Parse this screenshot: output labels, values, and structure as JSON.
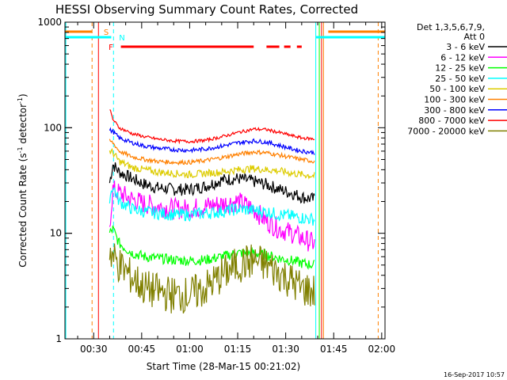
{
  "chart_data": {
    "type": "line",
    "title": "HESSI Observing Summary Count Rates, Corrected",
    "xlabel": "Start Time (28-Mar-15 00:21:02)",
    "ylabel": "Corrected Count Rate (s⁻¹ detector⁻¹)",
    "ylabel_parts": [
      "Corrected Count Rate (s",
      "-1",
      " detector",
      "-1",
      ")"
    ],
    "yscale": "log",
    "ylim": [
      1,
      1000
    ],
    "yticks": [
      {
        "v": 1,
        "label": "1"
      },
      {
        "v": 10,
        "label": "10"
      },
      {
        "v": 100,
        "label": "100"
      },
      {
        "v": 1000,
        "label": "1000"
      }
    ],
    "xlim_minutes": [
      21.03,
      121.03
    ],
    "xticks": [
      {
        "m": 30,
        "label": "00:30"
      },
      {
        "m": 45,
        "label": "00:45"
      },
      {
        "m": 60,
        "label": "01:00"
      },
      {
        "m": 75,
        "label": "01:15"
      },
      {
        "m": 90,
        "label": "01:30"
      },
      {
        "m": 105,
        "label": "01:45"
      },
      {
        "m": 120,
        "label": "02:00"
      }
    ],
    "legend": {
      "header_lines": [
        "Det 1,3,5,6,7,9,",
        "Att 0"
      ],
      "position": "right"
    },
    "series": [
      {
        "name": "3 - 6 keV",
        "color": "#000000",
        "x": [
          35,
          36,
          38,
          42,
          46,
          50,
          55,
          60,
          65,
          70,
          75,
          80,
          84,
          88,
          92,
          95,
          99
        ],
        "y": [
          30,
          45,
          38,
          33,
          29,
          27,
          26,
          26,
          28,
          32,
          33,
          31,
          29,
          26,
          24,
          22,
          21
        ]
      },
      {
        "name": "6 - 12 keV",
        "color": "#ff00ff",
        "x": [
          35,
          36,
          38,
          42,
          46,
          50,
          55,
          60,
          65,
          70,
          75,
          80,
          84,
          88,
          92,
          95,
          99
        ],
        "y": [
          12,
          26,
          24,
          21,
          19,
          18,
          17,
          17,
          18,
          19,
          20,
          17,
          13,
          11,
          10,
          9,
          8
        ]
      },
      {
        "name": "12 - 25 keV",
        "color": "#00ff00",
        "x": [
          35,
          36,
          38,
          42,
          46,
          50,
          55,
          60,
          65,
          70,
          75,
          80,
          84,
          88,
          92,
          95,
          99
        ],
        "y": [
          10,
          11,
          8,
          6.5,
          6,
          5.8,
          5.6,
          5.5,
          5.6,
          6,
          6.5,
          6.5,
          6.2,
          5.8,
          5.5,
          5.2,
          5
        ]
      },
      {
        "name": "25 - 50 keV",
        "color": "#00ffff",
        "x": [
          35,
          36,
          38,
          42,
          46,
          50,
          55,
          60,
          65,
          70,
          75,
          80,
          84,
          88,
          92,
          95,
          99
        ],
        "y": [
          22,
          28,
          20,
          17,
          16,
          15.5,
          15,
          15,
          15.5,
          16,
          17,
          16.5,
          16,
          15,
          14.5,
          14,
          13.5
        ]
      },
      {
        "name": "50 - 100 keV",
        "color": "#ddcc00",
        "x": [
          35,
          36,
          38,
          42,
          46,
          50,
          55,
          60,
          65,
          70,
          75,
          80,
          84,
          88,
          92,
          95,
          99
        ],
        "y": [
          60,
          58,
          48,
          42,
          40,
          38,
          37,
          36,
          37,
          38,
          40,
          41,
          40,
          39,
          37,
          36,
          35
        ]
      },
      {
        "name": "100 - 300 keV",
        "color": "#ff8000",
        "x": [
          35,
          36,
          38,
          42,
          46,
          50,
          55,
          60,
          65,
          70,
          75,
          80,
          84,
          88,
          92,
          95,
          99
        ],
        "y": [
          75,
          72,
          60,
          53,
          50,
          48,
          47,
          47,
          49,
          52,
          56,
          59,
          58,
          55,
          52,
          50,
          48
        ]
      },
      {
        "name": "300 - 800 keV",
        "color": "#0000ff",
        "x": [
          35,
          36,
          38,
          42,
          46,
          50,
          55,
          60,
          65,
          70,
          75,
          80,
          84,
          88,
          92,
          95,
          99
        ],
        "y": [
          95,
          92,
          80,
          72,
          67,
          64,
          62,
          61,
          63,
          67,
          72,
          75,
          73,
          68,
          63,
          60,
          58
        ]
      },
      {
        "name": "800 - 7000 keV",
        "color": "#ff0000",
        "x": [
          35,
          36,
          38,
          42,
          46,
          50,
          55,
          60,
          65,
          70,
          75,
          80,
          84,
          88,
          92,
          95,
          99
        ],
        "y": [
          150,
          120,
          100,
          88,
          82,
          78,
          75,
          74,
          76,
          82,
          90,
          97,
          96,
          90,
          84,
          80,
          78
        ]
      },
      {
        "name": "7000 - 20000 keV",
        "color": "#808000",
        "x": [
          35,
          36,
          38,
          42,
          46,
          50,
          55,
          60,
          65,
          70,
          75,
          80,
          84,
          88,
          92,
          95,
          99
        ],
        "y": [
          7,
          6,
          5,
          3.8,
          3,
          2.8,
          2.6,
          2.6,
          3,
          4,
          5,
          5.5,
          5,
          4.2,
          3.5,
          3,
          2.8
        ]
      }
    ],
    "annotations": {
      "flag_bars": [
        {
          "label": "S",
          "color": "#ff8000",
          "segments": [
            [
              21.03,
              29.5
            ],
            [
              103.3,
              121.03
            ]
          ],
          "level": "top"
        },
        {
          "label": "N",
          "color": "#00ffff",
          "segments": [
            [
              21.03,
              35.5
            ],
            [
              99.5,
              121.03
            ]
          ],
          "level": "middle"
        },
        {
          "label": "F",
          "color": "#ff0000",
          "segments": [
            [
              38.5,
              80
            ],
            [
              84,
              88
            ],
            [
              89.5,
              91.5
            ],
            [
              93.5,
              95
            ]
          ],
          "level": "lower"
        }
      ],
      "vertical_lines": [
        {
          "m": 21.3,
          "color": "#00ffff",
          "style": "solid"
        },
        {
          "m": 29.5,
          "color": "#ff8000",
          "style": "dashed"
        },
        {
          "m": 31.5,
          "color": "#ff0000",
          "style": "solid"
        },
        {
          "m": 36.2,
          "color": "#00ffff",
          "style": "dashed"
        },
        {
          "m": 99.4,
          "color": "#00ffff",
          "style": "solid"
        },
        {
          "m": 100.5,
          "color": "#00ff00",
          "style": "solid"
        },
        {
          "m": 101.2,
          "color": "#ff0000",
          "style": "solid"
        },
        {
          "m": 101.8,
          "color": "#ff8000",
          "style": "solid"
        },
        {
          "m": 118.9,
          "color": "#ff8000",
          "style": "dashed"
        }
      ]
    }
  },
  "footer": {
    "timestamp": "16-Sep-2017 10:57"
  }
}
